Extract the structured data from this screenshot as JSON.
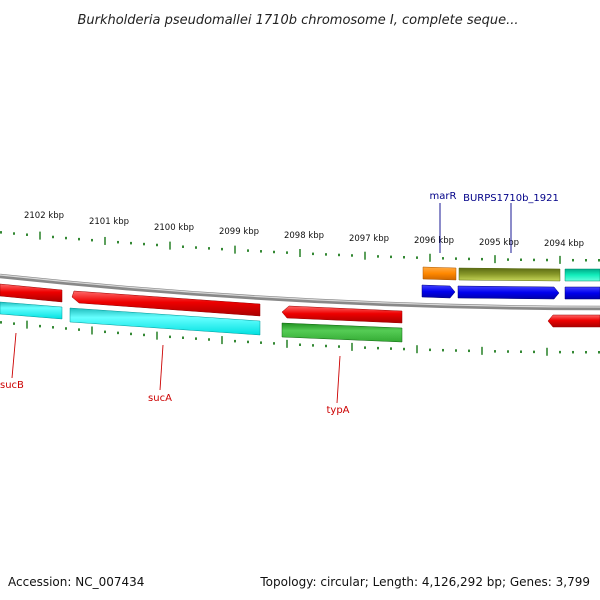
{
  "header": {
    "title": "Burkholderia pseudomallei 1710b chromosome I, complete seque..."
  },
  "ruler": {
    "labels": [
      "2102 kbp",
      "2101 kbp",
      "2100 kbp",
      "2099 kbp",
      "2098 kbp",
      "2097 kbp",
      "2096 kbp",
      "2095 kbp",
      "2094 kbp"
    ]
  },
  "genes": {
    "sucB": "sucB",
    "sucA": "sucA",
    "typA": "typA",
    "marR": "marR",
    "burps": "BURPS1710b_1921"
  },
  "colors": {
    "red": "#ee0000",
    "cyan": "#00ffff",
    "green": "#33bb33",
    "blue": "#0000ee",
    "orange": "#ff8800",
    "olive": "#7a8a22",
    "teal": "#00ddaa",
    "backbone": "#888888",
    "ticks": "#338833"
  },
  "footer": {
    "accession": "Accession: NC_007434",
    "summary": "Topology: circular; Length: 4,126,292 bp; Genes: 3,799"
  }
}
